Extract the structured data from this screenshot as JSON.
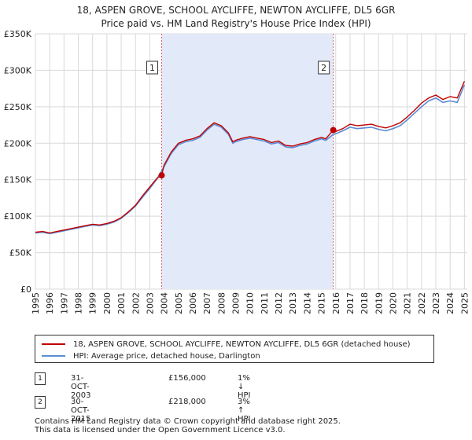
{
  "chart_data": {
    "type": "line",
    "title": "18, ASPEN GROVE, SCHOOL AYCLIFFE, NEWTON AYCLIFFE, DL5 6GR",
    "subtitle": "Price paid vs. HM Land Registry's House Price Index (HPI)",
    "xlabel": "",
    "ylabel": "",
    "xlim": [
      1995,
      2025.2
    ],
    "ylim": [
      0,
      350000
    ],
    "x_ticks": [
      1995,
      1996,
      1997,
      1998,
      1999,
      2000,
      2001,
      2002,
      2003,
      2004,
      2005,
      2006,
      2007,
      2008,
      2009,
      2010,
      2011,
      2012,
      2013,
      2014,
      2015,
      2016,
      2017,
      2018,
      2019,
      2020,
      2021,
      2022,
      2023,
      2024,
      2025
    ],
    "x_tick_labels": [
      "1995",
      "1996",
      "1997",
      "1998",
      "1999",
      "2000",
      "2001",
      "2002",
      "2003",
      "2004",
      "2005",
      "2006",
      "2007",
      "2008",
      "2009",
      "2010",
      "2011",
      "2012",
      "2013",
      "2014",
      "2015",
      "2016",
      "2017",
      "2018",
      "2019",
      "2020",
      "2021",
      "2022",
      "2023",
      "2024",
      "2025"
    ],
    "y_ticks": [
      0,
      50000,
      100000,
      150000,
      200000,
      250000,
      300000,
      350000
    ],
    "y_tick_labels": [
      "£0",
      "£50K",
      "£100K",
      "£150K",
      "£200K",
      "£250K",
      "£300K",
      "£350K"
    ],
    "grid": true,
    "shaded_region": [
      2003.83,
      2015.83
    ],
    "series": [
      {
        "name": "18, ASPEN GROVE, SCHOOL AYCLIFFE, NEWTON AYCLIFFE, DL5 6GR (detached house)",
        "color": "#c00000",
        "x": [
          1995,
          1995.5,
          1996,
          1996.5,
          1997,
          1997.5,
          1998,
          1998.5,
          1999,
          1999.5,
          2000,
          2000.5,
          2001,
          2001.5,
          2002,
          2002.5,
          2003,
          2003.5,
          2003.83,
          2004,
          2004.5,
          2005,
          2005.5,
          2006,
          2006.5,
          2007,
          2007.5,
          2008,
          2008.5,
          2008.8,
          2009,
          2009.5,
          2010,
          2010.5,
          2011,
          2011.5,
          2012,
          2012.5,
          2013,
          2013.5,
          2014,
          2014.5,
          2015,
          2015.3,
          2015.83,
          2016,
          2016.5,
          2017,
          2017.5,
          2018,
          2018.5,
          2019,
          2019.5,
          2020,
          2020.5,
          2021,
          2021.5,
          2022,
          2022.5,
          2023,
          2023.5,
          2024,
          2024.5,
          2025
        ],
        "values": [
          78000,
          79000,
          77000,
          79000,
          81000,
          83000,
          85000,
          87000,
          89000,
          88000,
          90000,
          93000,
          98000,
          106000,
          115000,
          128000,
          140000,
          152000,
          156000,
          170000,
          188000,
          200000,
          204000,
          206000,
          210000,
          220000,
          228000,
          224000,
          214000,
          202000,
          204000,
          207000,
          209000,
          207000,
          205000,
          201000,
          203000,
          197000,
          196000,
          199000,
          201000,
          205000,
          208000,
          206000,
          218000,
          216000,
          220000,
          226000,
          224000,
          225000,
          226000,
          223000,
          221000,
          224000,
          228000,
          236000,
          245000,
          255000,
          262000,
          266000,
          260000,
          264000,
          262000,
          285000
        ]
      },
      {
        "name": "HPI: Average price, detached house, Darlington",
        "color": "#5b8bd4",
        "x": [
          1995,
          1995.5,
          1996,
          1996.5,
          1997,
          1997.5,
          1998,
          1998.5,
          1999,
          1999.5,
          2000,
          2000.5,
          2001,
          2001.5,
          2002,
          2002.5,
          2003,
          2003.5,
          2004,
          2004.5,
          2005,
          2005.5,
          2006,
          2006.5,
          2007,
          2007.5,
          2008,
          2008.5,
          2008.8,
          2009,
          2009.5,
          2010,
          2010.5,
          2011,
          2011.5,
          2012,
          2012.5,
          2013,
          2013.5,
          2014,
          2014.5,
          2015,
          2015.3,
          2015.83,
          2016,
          2016.5,
          2017,
          2017.5,
          2018,
          2018.5,
          2019,
          2019.5,
          2020,
          2020.5,
          2021,
          2021.5,
          2022,
          2022.5,
          2023,
          2023.5,
          2024,
          2024.5,
          2025
        ],
        "values": [
          77000,
          78000,
          76000,
          78000,
          80000,
          82000,
          84000,
          86000,
          88000,
          87000,
          89000,
          92000,
          97000,
          105000,
          114000,
          126000,
          138000,
          151000,
          168000,
          186000,
          198000,
          202000,
          204000,
          208000,
          218000,
          226000,
          222000,
          212000,
          200000,
          202000,
          205000,
          207000,
          205000,
          203000,
          199000,
          201000,
          195000,
          194000,
          197000,
          199000,
          203000,
          206000,
          204000,
          212000,
          213000,
          217000,
          222000,
          220000,
          221000,
          222000,
          219000,
          217000,
          220000,
          224000,
          232000,
          241000,
          250000,
          258000,
          262000,
          256000,
          258000,
          256000,
          280000
        ]
      }
    ],
    "markers": [
      {
        "label": "1",
        "x": 2003.83,
        "y": 156000
      },
      {
        "label": "2",
        "x": 2015.83,
        "y": 218000
      }
    ]
  },
  "legend": {
    "entries": [
      {
        "label": "18, ASPEN GROVE, SCHOOL AYCLIFFE, NEWTON AYCLIFFE, DL5 6GR (detached house)",
        "color": "#c00000"
      },
      {
        "label": "HPI: Average price, detached house, Darlington",
        "color": "#5b8bd4"
      }
    ]
  },
  "transactions": [
    {
      "num": "1",
      "date": "31-OCT-2003",
      "price": "£156,000",
      "hpi": "1% ↓ HPI"
    },
    {
      "num": "2",
      "date": "30-OCT-2015",
      "price": "£218,000",
      "hpi": "3% ↑ HPI"
    }
  ],
  "footer": {
    "line1": "Contains HM Land Registry data © Crown copyright and database right 2025.",
    "line2": "This data is licensed under the Open Government Licence v3.0."
  }
}
